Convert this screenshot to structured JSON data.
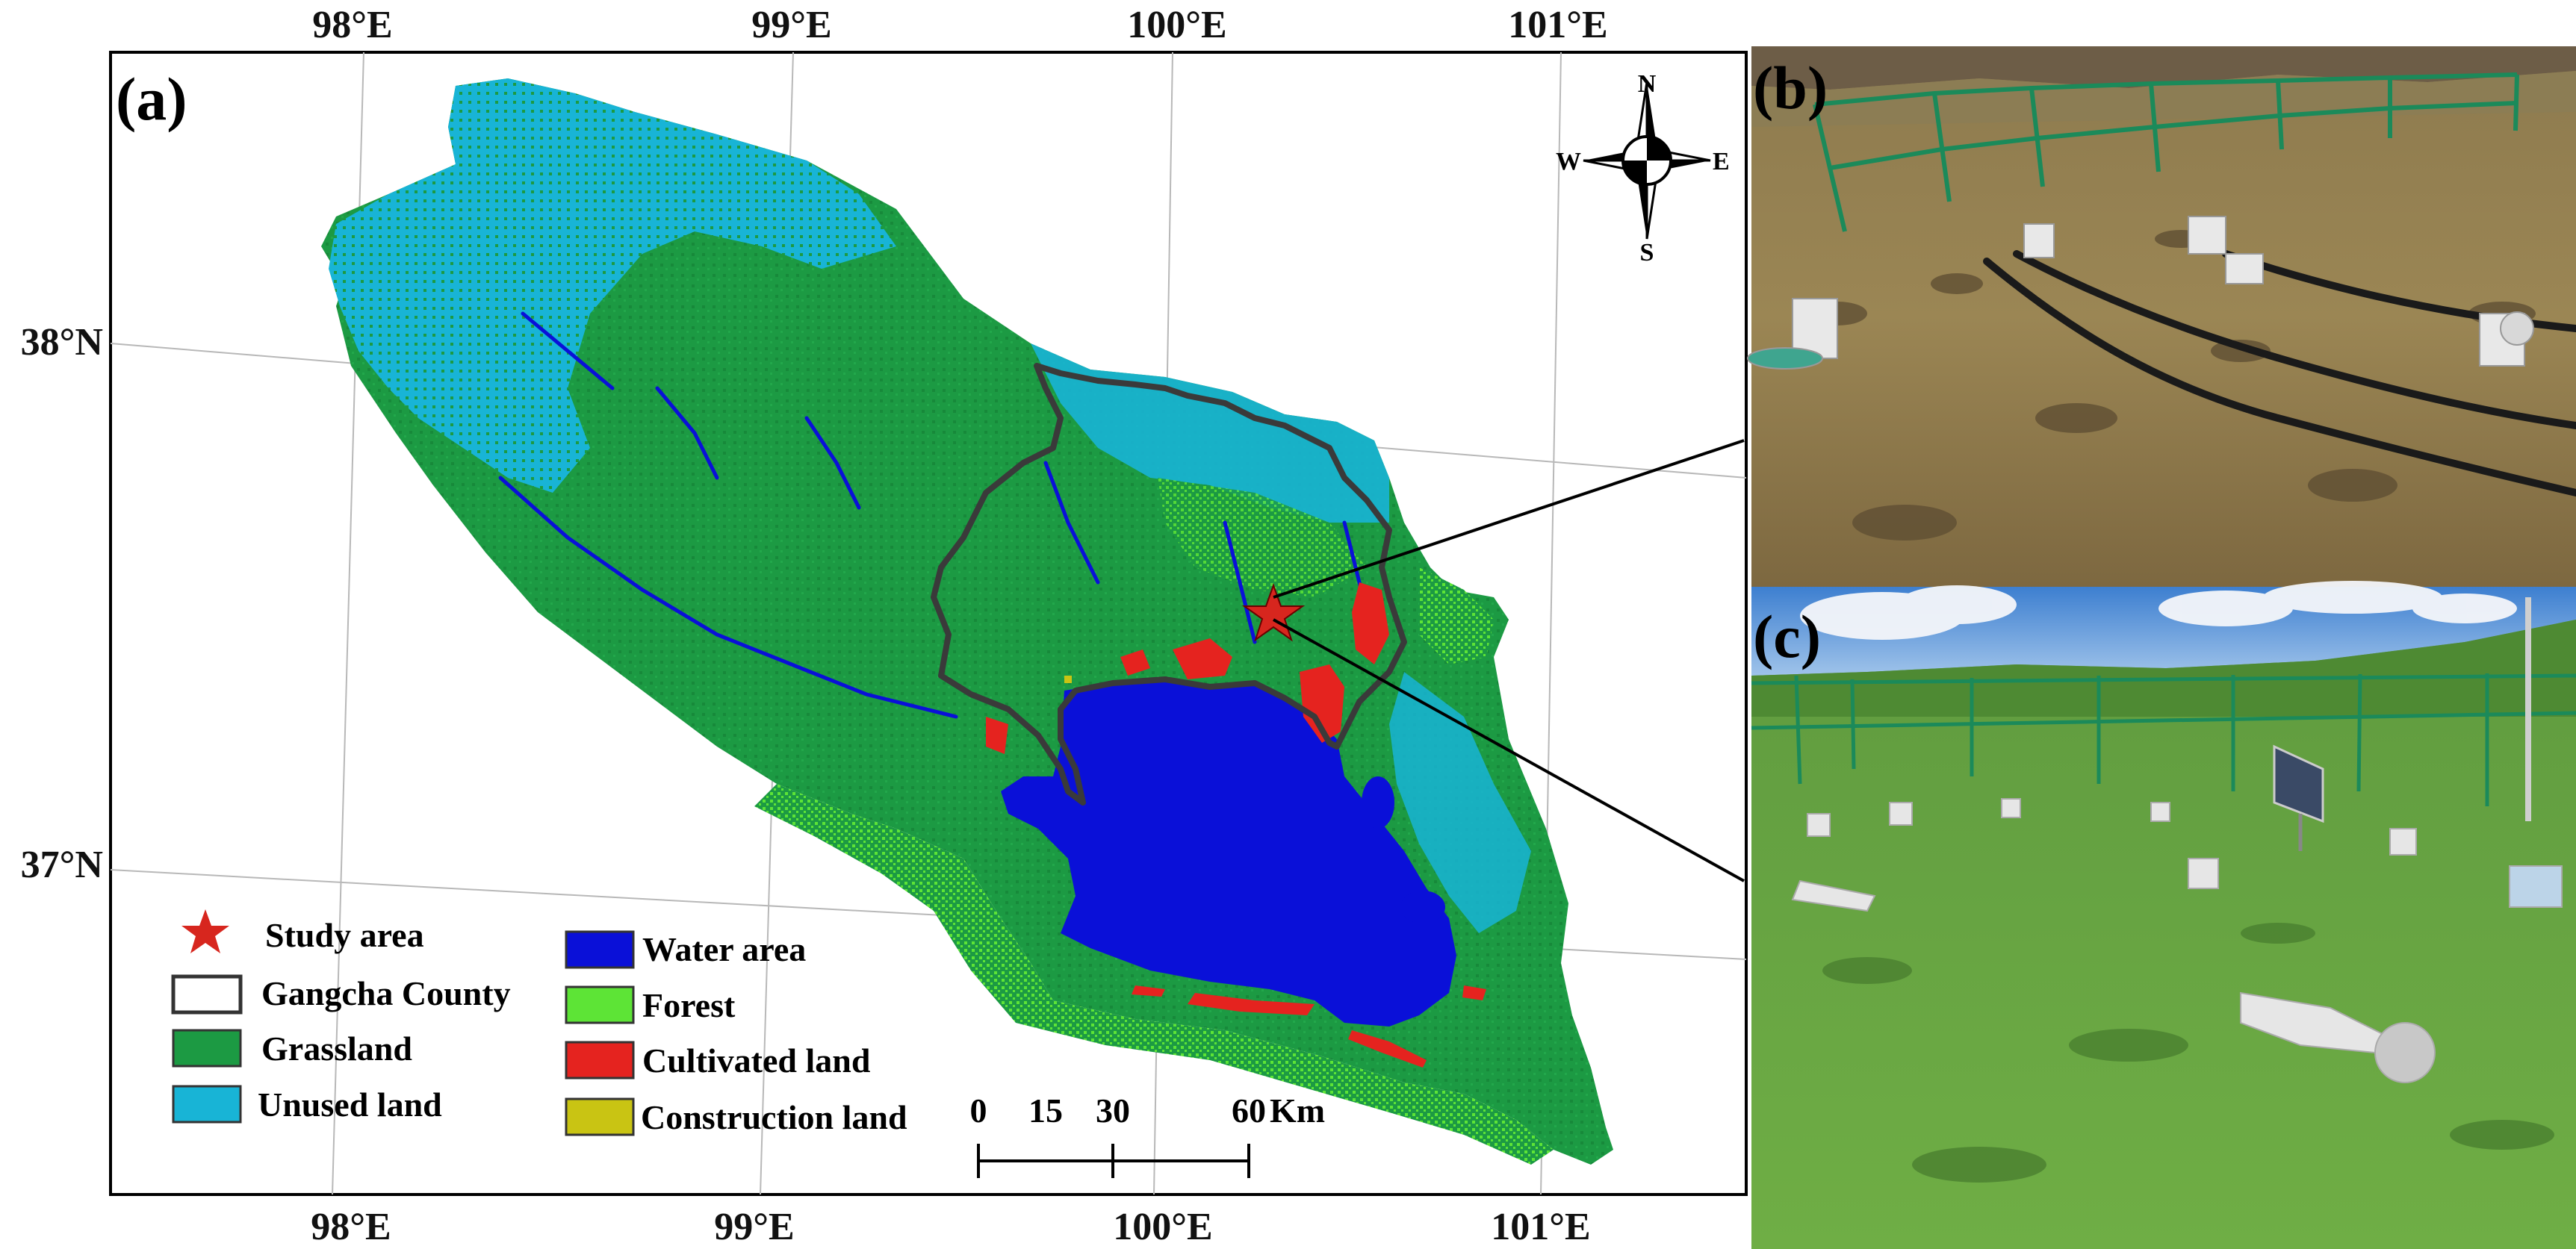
{
  "panels": {
    "a": {
      "label": "(a)"
    },
    "b": {
      "label": "(b)"
    },
    "c": {
      "label": "(c)"
    }
  },
  "axes": {
    "top_longitudes": [
      "98°E",
      "99°E",
      "100°E",
      "101°E"
    ],
    "bottom_longitudes": [
      "98°E",
      "99°E",
      "100°E",
      "101°E"
    ],
    "latitudes": [
      "38°N",
      "37°N"
    ]
  },
  "compass": {
    "n": "N",
    "s": "S",
    "e": "E",
    "w": "W"
  },
  "legend": {
    "items": [
      {
        "label": "Study area",
        "color": "#d7261e",
        "shape": "star"
      },
      {
        "label": "Gangcha County",
        "color": "#ffffff",
        "shape": "outline-box"
      },
      {
        "label": "Grassland",
        "color": "#1c9a43",
        "shape": "box"
      },
      {
        "label": "Unused land",
        "color": "#18b4d6",
        "shape": "box"
      },
      {
        "label": "Water area",
        "color": "#0a10d8",
        "shape": "box"
      },
      {
        "label": "Forest",
        "color": "#5de436",
        "shape": "box"
      },
      {
        "label": "Cultivated land",
        "color": "#e5231f",
        "shape": "box"
      },
      {
        "label": "Construction land",
        "color": "#c9c413",
        "shape": "box"
      }
    ]
  },
  "scale_bar": {
    "labels": [
      "0",
      "15",
      "30",
      "60"
    ],
    "unit": "Km"
  },
  "colors": {
    "grassland": "#1c9a43",
    "unused": "#18b4d6",
    "water": "#0a10d8",
    "forest": "#5de436",
    "cultivated": "#e5231f",
    "construction": "#c9c413",
    "county_outline": "#3a3a3a",
    "star": "#d7261e"
  }
}
